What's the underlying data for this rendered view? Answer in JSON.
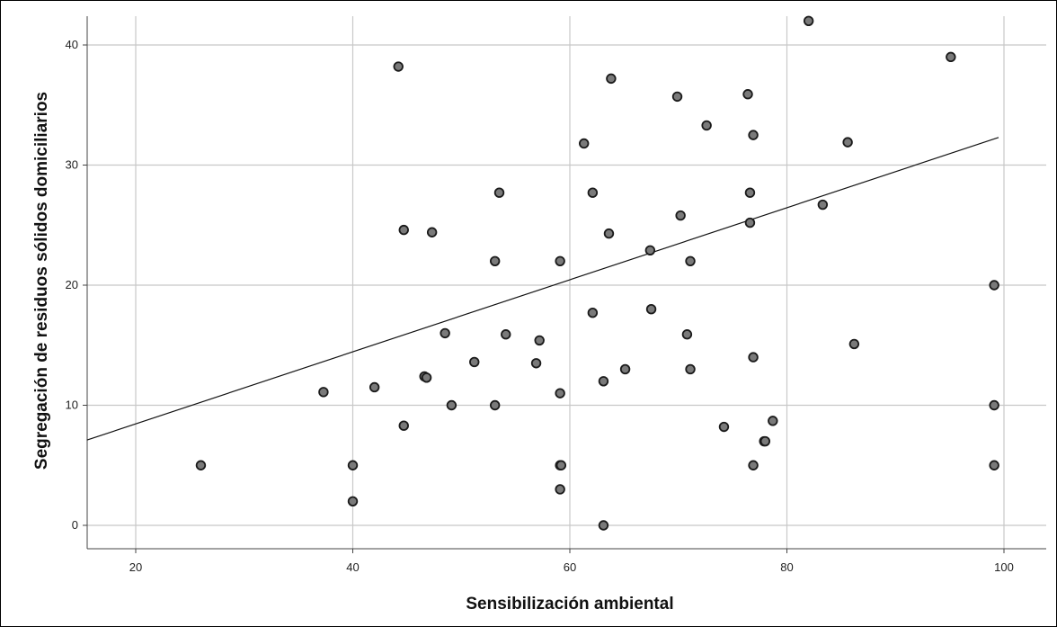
{
  "chart_data": {
    "type": "scatter",
    "xlabel": "Sensibilización ambiental",
    "ylabel": "Segregación de residuos sólidos domiciliarios",
    "xlim": [
      15.5,
      102
    ],
    "ylim": [
      -2,
      42.5
    ],
    "x_ticks": [
      20,
      40,
      60,
      80,
      100
    ],
    "y_ticks": [
      0,
      10,
      20,
      30,
      40
    ],
    "grid": true,
    "fit_line": {
      "x": [
        15.5,
        99.5
      ],
      "y": [
        7.1,
        32.3
      ]
    },
    "points": [
      {
        "x": 26,
        "y": 5
      },
      {
        "x": 37.3,
        "y": 11.1
      },
      {
        "x": 40,
        "y": 5
      },
      {
        "x": 40,
        "y": 2
      },
      {
        "x": 42,
        "y": 11.5
      },
      {
        "x": 44.2,
        "y": 38.2
      },
      {
        "x": 44.7,
        "y": 24.6
      },
      {
        "x": 44.7,
        "y": 8.3
      },
      {
        "x": 46.6,
        "y": 12.4
      },
      {
        "x": 46.8,
        "y": 12.3
      },
      {
        "x": 47.3,
        "y": 24.4
      },
      {
        "x": 48.5,
        "y": 16
      },
      {
        "x": 49.1,
        "y": 10
      },
      {
        "x": 51.2,
        "y": 13.6
      },
      {
        "x": 53.1,
        "y": 22
      },
      {
        "x": 53.1,
        "y": 10
      },
      {
        "x": 53.5,
        "y": 27.7
      },
      {
        "x": 54.1,
        "y": 15.9
      },
      {
        "x": 56.9,
        "y": 13.5
      },
      {
        "x": 57.2,
        "y": 15.4
      },
      {
        "x": 59.1,
        "y": 22
      },
      {
        "x": 59.1,
        "y": 11
      },
      {
        "x": 59.1,
        "y": 5
      },
      {
        "x": 59.2,
        "y": 5
      },
      {
        "x": 59.1,
        "y": 3
      },
      {
        "x": 61.3,
        "y": 31.8
      },
      {
        "x": 62.1,
        "y": 27.7
      },
      {
        "x": 62.1,
        "y": 17.7
      },
      {
        "x": 63.1,
        "y": 12
      },
      {
        "x": 63.1,
        "y": 0
      },
      {
        "x": 63.6,
        "y": 24.3
      },
      {
        "x": 63.8,
        "y": 37.2
      },
      {
        "x": 65.1,
        "y": 13
      },
      {
        "x": 67.4,
        "y": 22.9
      },
      {
        "x": 67.5,
        "y": 18
      },
      {
        "x": 69.9,
        "y": 35.7
      },
      {
        "x": 70.2,
        "y": 25.8
      },
      {
        "x": 70.8,
        "y": 15.9
      },
      {
        "x": 71.1,
        "y": 22
      },
      {
        "x": 71.1,
        "y": 13
      },
      {
        "x": 72.6,
        "y": 33.3
      },
      {
        "x": 74.2,
        "y": 8.2
      },
      {
        "x": 76.4,
        "y": 35.9
      },
      {
        "x": 76.6,
        "y": 27.7
      },
      {
        "x": 76.6,
        "y": 25.2
      },
      {
        "x": 76.9,
        "y": 32.5
      },
      {
        "x": 76.9,
        "y": 14
      },
      {
        "x": 76.9,
        "y": 5
      },
      {
        "x": 77.9,
        "y": 7
      },
      {
        "x": 78.0,
        "y": 7
      },
      {
        "x": 78.7,
        "y": 8.7
      },
      {
        "x": 82.0,
        "y": 42
      },
      {
        "x": 83.3,
        "y": 26.7
      },
      {
        "x": 85.6,
        "y": 31.9
      },
      {
        "x": 86.2,
        "y": 15.1
      },
      {
        "x": 95.1,
        "y": 39
      },
      {
        "x": 99.1,
        "y": 20
      },
      {
        "x": 99.1,
        "y": 10
      },
      {
        "x": 99.1,
        "y": 5
      }
    ]
  }
}
